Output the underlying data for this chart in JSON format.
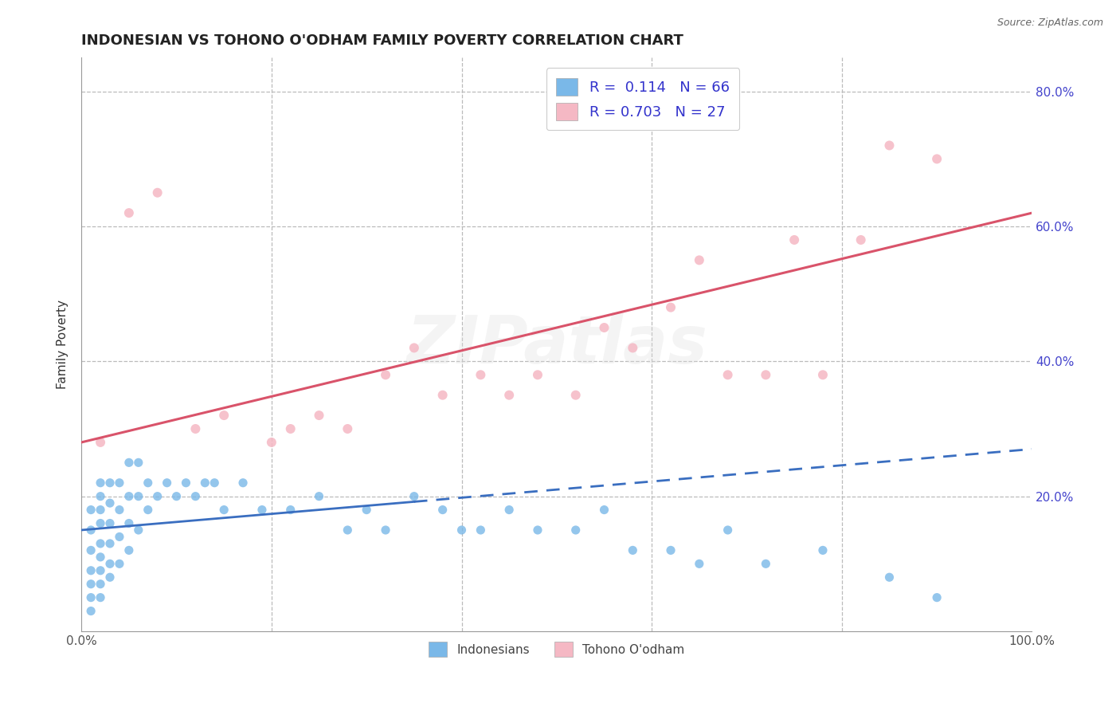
{
  "title": "INDONESIAN VS TOHONO O'ODHAM FAMILY POVERTY CORRELATION CHART",
  "source": "Source: ZipAtlas.com",
  "ylabel": "Family Poverty",
  "xlim": [
    0,
    100
  ],
  "ylim": [
    0,
    85
  ],
  "legend_R1": "0.114",
  "legend_N1": "66",
  "legend_R2": "0.703",
  "legend_N2": "27",
  "legend_label1": "Indonesians",
  "legend_label2": "Tohono O'odham",
  "color_blue": "#7ab8e8",
  "color_pink": "#f5b8c4",
  "color_blue_line": "#3a6ec0",
  "color_pink_line": "#d9536a",
  "color_legend_text": "#3333cc",
  "color_tick_labels": "#4444cc",
  "watermark_text": "ZIPatlas",
  "indo_x": [
    1,
    1,
    1,
    1,
    1,
    1,
    1,
    2,
    2,
    2,
    2,
    2,
    2,
    2,
    2,
    2,
    3,
    3,
    3,
    3,
    3,
    3,
    4,
    4,
    4,
    4,
    5,
    5,
    5,
    5,
    6,
    6,
    6,
    7,
    7,
    8,
    9,
    10,
    11,
    12,
    13,
    14,
    15,
    17,
    19,
    22,
    25,
    28,
    30,
    32,
    35,
    38,
    40,
    42,
    45,
    48,
    52,
    55,
    58,
    62,
    65,
    68,
    72,
    78,
    85,
    90
  ],
  "indo_y": [
    3,
    5,
    7,
    9,
    12,
    15,
    18,
    5,
    7,
    9,
    11,
    13,
    16,
    18,
    20,
    22,
    8,
    10,
    13,
    16,
    19,
    22,
    10,
    14,
    18,
    22,
    12,
    16,
    20,
    25,
    15,
    20,
    25,
    18,
    22,
    20,
    22,
    20,
    22,
    20,
    22,
    22,
    18,
    22,
    18,
    18,
    20,
    15,
    18,
    15,
    20,
    18,
    15,
    15,
    18,
    15,
    15,
    18,
    12,
    12,
    10,
    15,
    10,
    12,
    8,
    5
  ],
  "tohono_x": [
    2,
    5,
    8,
    12,
    15,
    20,
    22,
    25,
    28,
    32,
    35,
    38,
    42,
    45,
    48,
    52,
    55,
    58,
    62,
    65,
    68,
    72,
    75,
    78,
    82,
    85,
    90
  ],
  "tohono_y": [
    28,
    62,
    65,
    30,
    32,
    28,
    30,
    32,
    30,
    38,
    42,
    35,
    38,
    35,
    38,
    35,
    45,
    42,
    48,
    55,
    38,
    38,
    58,
    38,
    58,
    72,
    70
  ],
  "blue_line_x0": 0,
  "blue_line_y0": 15.0,
  "blue_line_x1": 100,
  "blue_line_y1": 27.0,
  "blue_solid_end": 35,
  "pink_line_x0": 0,
  "pink_line_y0": 28.0,
  "pink_line_x1": 100,
  "pink_line_y1": 62.0,
  "grid_color": "#bbbbbb",
  "background_color": "#ffffff",
  "title_fontsize": 13,
  "axis_label_fontsize": 11,
  "tick_fontsize": 11,
  "legend_fontsize": 13
}
